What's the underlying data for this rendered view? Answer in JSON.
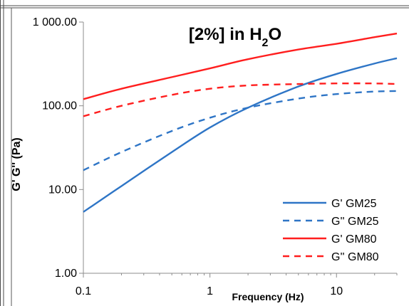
{
  "chart_data": {
    "type": "line",
    "title": "[2%] in H",
    "title_subscript": "2",
    "title_suffix": "O",
    "xlabel": "Frequency (Hz)",
    "ylabel": "G' G'' (Pa)",
    "x_scale": "log",
    "y_scale": "log",
    "xlim": [
      0.1,
      30
    ],
    "ylim": [
      1,
      1000
    ],
    "x_tick_values": [
      0.1,
      1,
      10
    ],
    "x_tick_labels": [
      "0.1",
      "1",
      "10"
    ],
    "y_tick_values": [
      1,
      10,
      100,
      1000
    ],
    "y_tick_labels": [
      "1.00",
      "10.00",
      "100.00",
      "1 000.00"
    ],
    "grid": false,
    "legend_position": "bottom-right",
    "series": [
      {
        "name": "G' GM25",
        "color": "#2e75c6",
        "style": "solid",
        "x": [
          0.1,
          0.2,
          0.5,
          1,
          2,
          5,
          10,
          20,
          30
        ],
        "y": [
          5.4,
          11,
          28,
          55,
          95,
          170,
          240,
          320,
          370
        ]
      },
      {
        "name": "G'' GM25",
        "color": "#2e75c6",
        "style": "dashed",
        "x": [
          0.1,
          0.2,
          0.5,
          1,
          2,
          5,
          10,
          20,
          30
        ],
        "y": [
          17,
          28,
          50,
          72,
          95,
          122,
          138,
          148,
          150
        ]
      },
      {
        "name": "G' GM80",
        "color": "#ff1e1e",
        "style": "solid",
        "x": [
          0.1,
          0.2,
          0.5,
          1,
          2,
          5,
          10,
          20,
          30
        ],
        "y": [
          120,
          160,
          220,
          280,
          360,
          470,
          550,
          660,
          730
        ]
      },
      {
        "name": "G'' GM80",
        "color": "#ff1e1e",
        "style": "dashed",
        "x": [
          0.1,
          0.2,
          0.5,
          1,
          2,
          5,
          10,
          20,
          30
        ],
        "y": [
          75,
          100,
          135,
          160,
          175,
          182,
          185,
          185,
          182
        ]
      }
    ]
  }
}
